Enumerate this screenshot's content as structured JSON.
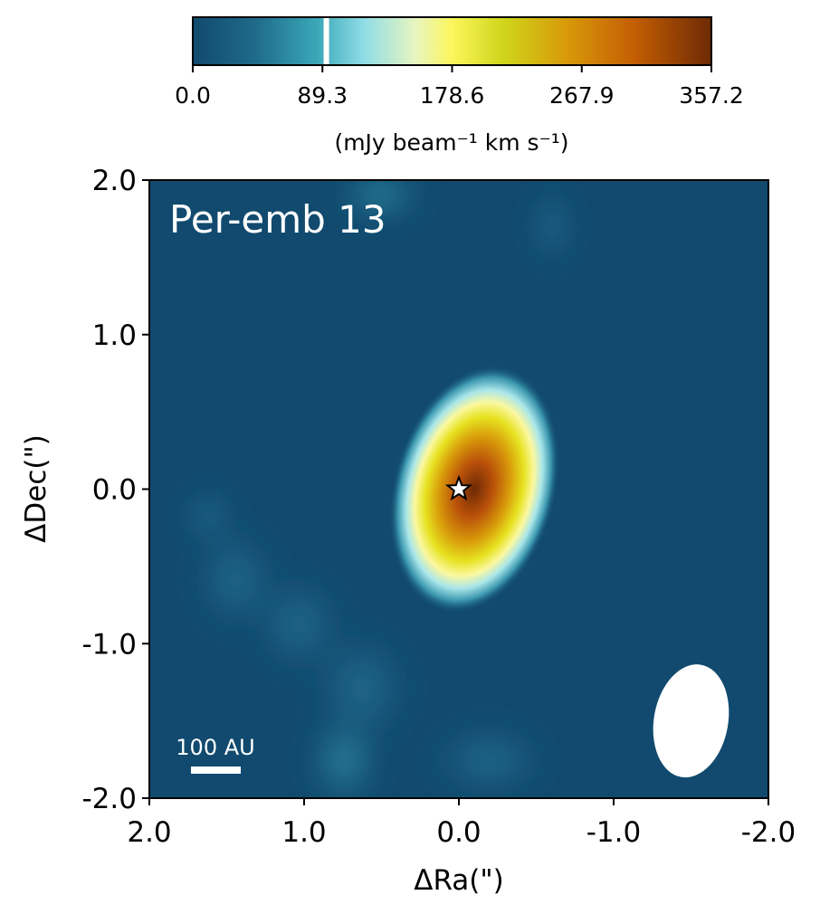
{
  "chart_data": {
    "type": "heatmap",
    "title": "",
    "panel_label": "Per-emb 13",
    "xlabel": "ΔRa(\")",
    "ylabel": "ΔDec(\")",
    "xlim": [
      2.0,
      -2.0
    ],
    "ylim": [
      -2.0,
      2.0
    ],
    "x_ticks": [
      "2.0",
      "1.0",
      "0.0",
      "-1.0",
      "-2.0"
    ],
    "y_ticks": [
      "-2.0",
      "-1.0",
      "0.0",
      "1.0",
      "2.0"
    ],
    "colorbar": {
      "label": "(mJy beam⁻¹ km s⁻¹)",
      "range": [
        0.0,
        357.2
      ],
      "ticks": [
        "0.0",
        "89.3",
        "178.6",
        "267.9",
        "357.2"
      ],
      "marker_value": 92.0,
      "colors": [
        "#114a6e",
        "#1f6a8a",
        "#3aa8b8",
        "#8fdde6",
        "#e8f5c0",
        "#fbf65c",
        "#cfd51a",
        "#d89a0a",
        "#c45e04",
        "#6e2a05"
      ]
    },
    "emission_peak": {
      "x": -0.1,
      "y": 0.0,
      "value": 357.2
    },
    "source_position": {
      "x": 0.0,
      "y": 0.0
    },
    "beam": {
      "x": -1.5,
      "y": -1.5
    },
    "scale_bar": {
      "label": "100 AU"
    },
    "colors": {
      "background": "#114a6e",
      "star_fill": "#ffffff",
      "star_edge": "#000000",
      "beam_fill": "#ffffff"
    }
  }
}
